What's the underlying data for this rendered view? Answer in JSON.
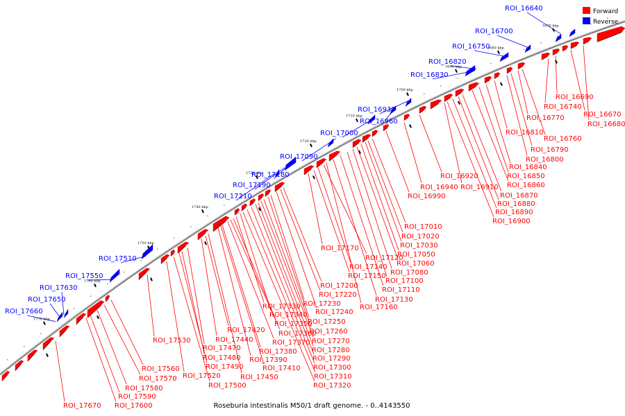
{
  "caption": "Roseburia intestinalis M50/1 draft genome. - 0..4143550",
  "legend": [
    {
      "label": "Forward",
      "color": "#ff0000"
    },
    {
      "label": "Reverse",
      "color": "#0000ff"
    }
  ],
  "colors": {
    "forward": "#ff0000",
    "reverse": "#0000ff",
    "axis": "#7f7f7f"
  },
  "ticks": [
    "1670 kbp",
    "1680 kbp",
    "1690 kbp",
    "1700 kbp",
    "1710 kbp",
    "1720 kbp",
    "1730 kbp",
    "1740 kbp",
    "1750 kbp",
    "1760 kbp",
    "1770 kbp"
  ],
  "labels_reverse": [
    "ROI_16640",
    "ROI_16700",
    "ROI_16750",
    "ROI_16820",
    "ROI_16830",
    "ROI_16930",
    "ROI_16960",
    "ROI_17000",
    "ROI_17090",
    "ROI_17180",
    "ROI_17190",
    "ROI_17210",
    "ROI_17510",
    "ROI_17550",
    "ROI_17630",
    "ROI_17650",
    "ROI_17660"
  ],
  "labels_forward": [
    "ROI_16690",
    "ROI_16740",
    "ROI_16670",
    "ROI_16680",
    "ROI_16770",
    "ROI_16810",
    "ROI_16760",
    "ROI_16790",
    "ROI_16800",
    "ROI_16840",
    "ROI_16850",
    "ROI_16860",
    "ROI_16920",
    "ROI_16940",
    "ROI_16910",
    "ROI_16990",
    "ROI_16870",
    "ROI_16880",
    "ROI_16890",
    "ROI_16900",
    "ROI_17010",
    "ROI_17020",
    "ROI_17030",
    "ROI_17050",
    "ROI_17060",
    "ROI_17080",
    "ROI_17100",
    "ROI_17110",
    "ROI_17130",
    "ROI_17160",
    "ROI_17170",
    "ROI_17120",
    "ROI_17140",
    "ROI_17150",
    "ROI_17200",
    "ROI_17220",
    "ROI_17230",
    "ROI_17240",
    "ROI_17250",
    "ROI_17260",
    "ROI_17270",
    "ROI_17280",
    "ROI_17290",
    "ROI_17300",
    "ROI_17310",
    "ROI_17320",
    "ROI_17330",
    "ROI_17340",
    "ROI_17350",
    "ROI_17360",
    "ROI_17370",
    "ROI_17380",
    "ROI_17390",
    "ROI_17410",
    "ROI_17420",
    "ROI_17440",
    "ROI_17470",
    "ROI_17480",
    "ROI_17490",
    "ROI_17450",
    "ROI_17500",
    "ROI_17520",
    "ROI_17530",
    "ROI_17560",
    "ROI_17570",
    "ROI_17580",
    "ROI_17590",
    "ROI_17600",
    "ROI_17670"
  ]
}
